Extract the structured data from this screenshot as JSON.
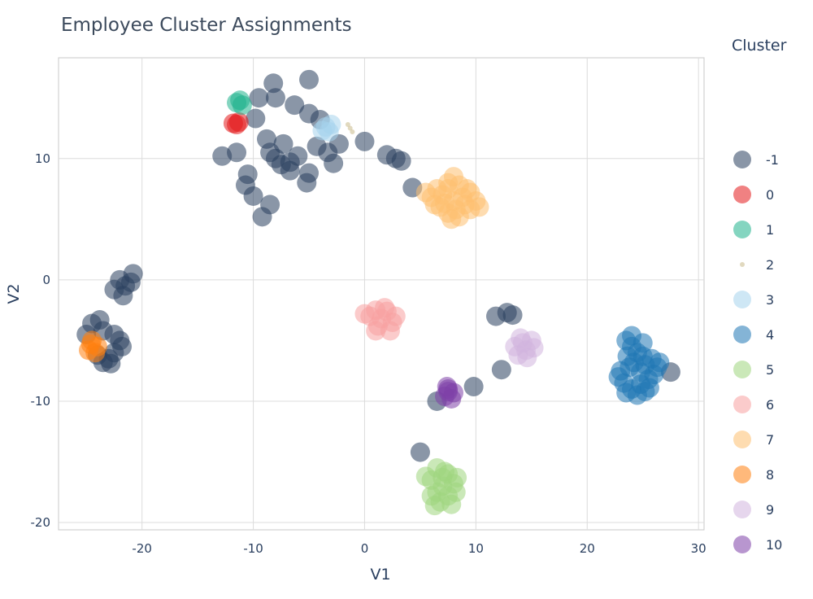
{
  "chart_data": {
    "type": "scatter",
    "title": "Employee Cluster Assignments",
    "xlabel": "V1",
    "ylabel": "V2",
    "xlim": [
      -27.5,
      30.5
    ],
    "ylim": [
      -20.6,
      18.3
    ],
    "xticks": [
      -20,
      -10,
      0,
      10,
      20,
      30
    ],
    "yticks": [
      -20,
      -10,
      0,
      10
    ],
    "grid": true,
    "legend": {
      "title": "Cluster",
      "position": "right"
    },
    "series": [
      {
        "name": "-1",
        "color": "#2a3f5f",
        "points": [
          [
            -8.2,
            16.2
          ],
          [
            -8.0,
            15.0
          ],
          [
            -5.0,
            16.5
          ],
          [
            -9.5,
            15.0
          ],
          [
            -9.8,
            13.3
          ],
          [
            -6.3,
            14.4
          ],
          [
            -5.0,
            13.7
          ],
          [
            -4.0,
            13.2
          ],
          [
            -4.3,
            11.0
          ],
          [
            -2.3,
            11.2
          ],
          [
            -3.3,
            10.5
          ],
          [
            -7.3,
            11.2
          ],
          [
            -8.5,
            10.5
          ],
          [
            -8.0,
            10.0
          ],
          [
            -7.5,
            9.5
          ],
          [
            -6.7,
            9.7
          ],
          [
            -6.0,
            10.2
          ],
          [
            -8.8,
            11.6
          ],
          [
            -6.7,
            9.0
          ],
          [
            -5.0,
            8.8
          ],
          [
            -2.8,
            9.6
          ],
          [
            -5.2,
            8.0
          ],
          [
            -11.5,
            10.5
          ],
          [
            -12.8,
            10.2
          ],
          [
            -10.5,
            8.7
          ],
          [
            -10.7,
            7.8
          ],
          [
            -10.0,
            6.9
          ],
          [
            -8.5,
            6.2
          ],
          [
            -9.2,
            5.2
          ],
          [
            0.0,
            11.4
          ],
          [
            2.0,
            10.3
          ],
          [
            2.8,
            10.0
          ],
          [
            3.3,
            9.8
          ],
          [
            4.3,
            7.6
          ],
          [
            -22.0,
            0.0
          ],
          [
            -21.5,
            -0.5
          ],
          [
            -20.8,
            0.5
          ],
          [
            -21.0,
            -0.2
          ],
          [
            -22.5,
            -0.8
          ],
          [
            -21.7,
            -1.3
          ],
          [
            -24.5,
            -3.6
          ],
          [
            -23.8,
            -3.3
          ],
          [
            -23.5,
            -4.2
          ],
          [
            -25.0,
            -4.5
          ],
          [
            -22.5,
            -4.5
          ],
          [
            -22.0,
            -5.0
          ],
          [
            -21.8,
            -5.5
          ],
          [
            -22.5,
            -6.0
          ],
          [
            -23.0,
            -6.5
          ],
          [
            -23.5,
            -6.8
          ],
          [
            -22.8,
            -6.9
          ],
          [
            -24.0,
            -6.2
          ],
          [
            11.8,
            -3.0
          ],
          [
            12.8,
            -2.7
          ],
          [
            13.3,
            -2.9
          ],
          [
            12.3,
            -7.4
          ],
          [
            9.8,
            -8.8
          ],
          [
            6.5,
            -10.0
          ],
          [
            5.0,
            -14.2
          ],
          [
            27.5,
            -7.6
          ]
        ]
      },
      {
        "name": "0",
        "color": "#e41a1c",
        "points": [
          [
            -11.8,
            12.9
          ],
          [
            -11.3,
            13.0
          ],
          [
            -11.5,
            12.8
          ]
        ]
      },
      {
        "name": "1",
        "color": "#1fb28c",
        "points": [
          [
            -11.5,
            14.6
          ],
          [
            -11.0,
            14.4
          ],
          [
            -11.2,
            14.8
          ]
        ]
      },
      {
        "name": "2",
        "color": "#c9b98a",
        "points": [
          [
            -1.5,
            12.8
          ],
          [
            -1.3,
            12.5
          ],
          [
            -1.1,
            12.2
          ]
        ]
      },
      {
        "name": "3",
        "color": "#a6d4ec",
        "points": [
          [
            -3.5,
            12.6
          ],
          [
            -3.2,
            12.2
          ],
          [
            -3.8,
            12.3
          ],
          [
            -3.0,
            12.8
          ]
        ]
      },
      {
        "name": "4",
        "color": "#1f77b4",
        "points": [
          [
            23.5,
            -5.0
          ],
          [
            24.0,
            -5.5
          ],
          [
            24.5,
            -6.0
          ],
          [
            25.0,
            -6.3
          ],
          [
            24.2,
            -6.8
          ],
          [
            23.8,
            -7.2
          ],
          [
            25.2,
            -7.0
          ],
          [
            25.8,
            -6.5
          ],
          [
            26.3,
            -7.2
          ],
          [
            26.0,
            -7.8
          ],
          [
            25.5,
            -8.2
          ],
          [
            24.8,
            -8.6
          ],
          [
            24.0,
            -9.0
          ],
          [
            23.3,
            -8.5
          ],
          [
            22.8,
            -8.0
          ],
          [
            23.0,
            -7.5
          ],
          [
            24.5,
            -9.5
          ],
          [
            25.2,
            -9.2
          ],
          [
            26.5,
            -6.8
          ],
          [
            24.0,
            -4.6
          ],
          [
            25.0,
            -5.2
          ],
          [
            23.6,
            -6.3
          ],
          [
            24.8,
            -7.6
          ],
          [
            25.6,
            -8.9
          ],
          [
            23.5,
            -9.3
          ]
        ]
      },
      {
        "name": "5",
        "color": "#9ed67e",
        "points": [
          [
            6.5,
            -15.5
          ],
          [
            7.5,
            -16.0
          ],
          [
            6.0,
            -16.5
          ],
          [
            7.0,
            -17.0
          ],
          [
            8.0,
            -16.8
          ],
          [
            6.5,
            -17.5
          ],
          [
            7.5,
            -17.8
          ],
          [
            6.8,
            -18.3
          ],
          [
            6.3,
            -18.6
          ],
          [
            7.8,
            -18.5
          ],
          [
            8.2,
            -17.5
          ],
          [
            5.5,
            -16.2
          ],
          [
            7.2,
            -15.8
          ],
          [
            6.0,
            -17.8
          ],
          [
            7.0,
            -16.3
          ],
          [
            8.3,
            -16.3
          ]
        ]
      },
      {
        "name": "6",
        "color": "#f7a1a1",
        "points": [
          [
            1.0,
            -2.5
          ],
          [
            2.0,
            -2.6
          ],
          [
            1.5,
            -3.2
          ],
          [
            2.5,
            -3.5
          ],
          [
            0.5,
            -3.0
          ],
          [
            1.2,
            -3.8
          ],
          [
            2.3,
            -4.2
          ],
          [
            1.0,
            -4.2
          ],
          [
            0.0,
            -2.8
          ],
          [
            2.8,
            -3.0
          ],
          [
            1.8,
            -2.3
          ]
        ]
      },
      {
        "name": "7",
        "color": "#fdbf6f",
        "points": [
          [
            6.5,
            7.5
          ],
          [
            7.5,
            8.0
          ],
          [
            8.5,
            7.8
          ],
          [
            9.5,
            7.2
          ],
          [
            10.0,
            6.5
          ],
          [
            9.5,
            5.8
          ],
          [
            8.5,
            5.2
          ],
          [
            7.5,
            5.5
          ],
          [
            6.8,
            6.0
          ],
          [
            6.0,
            6.8
          ],
          [
            7.0,
            7.0
          ],
          [
            8.0,
            6.5
          ],
          [
            9.0,
            6.2
          ],
          [
            8.2,
            5.8
          ],
          [
            7.2,
            6.3
          ],
          [
            5.5,
            7.2
          ],
          [
            8.0,
            8.5
          ],
          [
            9.2,
            7.5
          ],
          [
            10.3,
            6.0
          ],
          [
            7.8,
            5.0
          ],
          [
            6.3,
            6.2
          ],
          [
            8.8,
            6.8
          ],
          [
            7.5,
            7.5
          ]
        ]
      },
      {
        "name": "8",
        "color": "#ff7f0e",
        "points": [
          [
            -24.5,
            -5.0
          ],
          [
            -24.0,
            -5.5
          ],
          [
            -24.8,
            -5.8
          ],
          [
            -24.2,
            -6.0
          ],
          [
            -24.6,
            -5.3
          ]
        ]
      },
      {
        "name": "9",
        "color": "#d2b4de",
        "points": [
          [
            14.0,
            -4.8
          ],
          [
            15.0,
            -5.0
          ],
          [
            13.5,
            -5.5
          ],
          [
            14.5,
            -5.8
          ],
          [
            15.2,
            -5.6
          ],
          [
            13.8,
            -6.2
          ],
          [
            14.6,
            -6.4
          ],
          [
            14.2,
            -5.2
          ]
        ]
      },
      {
        "name": "10",
        "color": "#7e3fa8",
        "points": [
          [
            7.5,
            -9.0
          ],
          [
            8.0,
            -9.3
          ],
          [
            7.2,
            -9.6
          ],
          [
            7.8,
            -9.8
          ],
          [
            7.5,
            -9.2
          ],
          [
            7.4,
            -8.8
          ]
        ]
      }
    ]
  }
}
